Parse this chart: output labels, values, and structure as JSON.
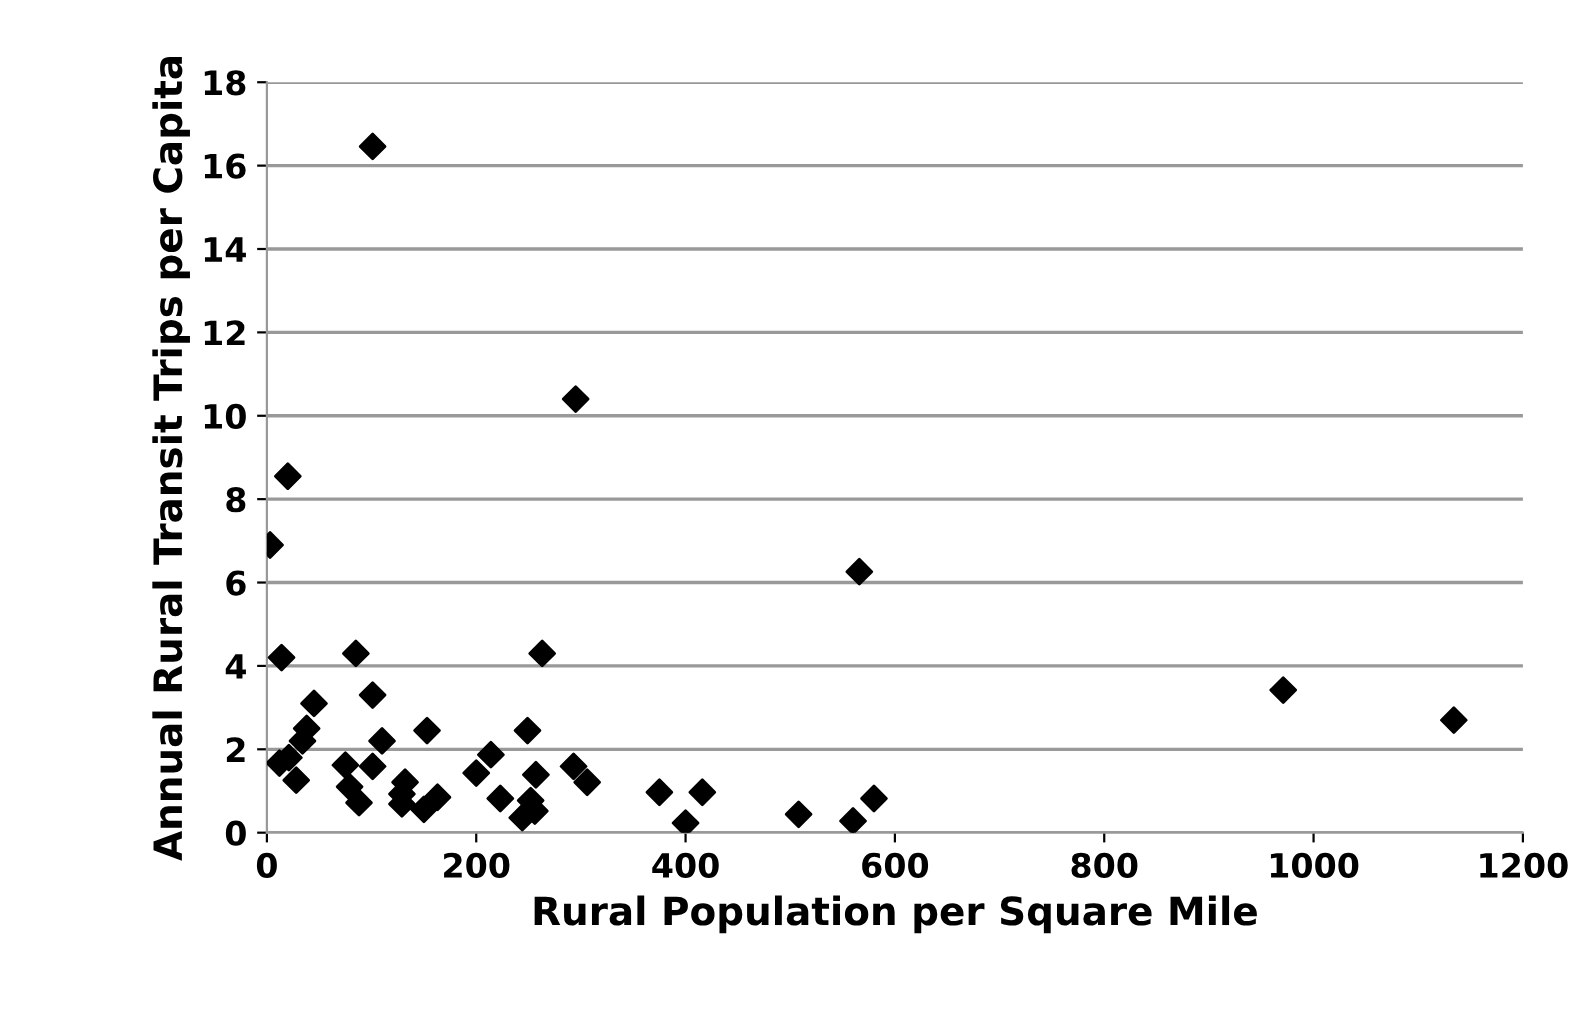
{
  "chart_data": {
    "type": "scatter",
    "xlabel": "Rural Population per Square Mile",
    "ylabel": "Annual Rural Transit Trips per Capita",
    "xlim": [
      0,
      1200
    ],
    "xticks": [
      0,
      200,
      400,
      600,
      800,
      1000,
      1200
    ],
    "ylim": [
      0,
      18
    ],
    "yticks": [
      0,
      2,
      4,
      6,
      8,
      10,
      12,
      14,
      16,
      18
    ],
    "grid": "y",
    "marker": "diamond",
    "legend": false,
    "series": [
      {
        "color": "#000000",
        "x": [
          3,
          20,
          101,
          295,
          566,
          971,
          1134,
          14,
          85,
          263,
          45,
          101,
          38,
          34,
          110,
          153,
          249,
          12,
          21,
          28,
          75,
          79,
          88,
          101,
          132,
          129,
          129,
          150,
          163,
          200,
          214,
          223,
          257,
          252,
          256,
          244,
          293,
          306,
          375,
          416,
          400,
          508,
          560,
          580
        ],
        "values": [
          6.9,
          8.55,
          16.46,
          10.4,
          6.26,
          3.42,
          2.7,
          4.2,
          4.3,
          4.3,
          3.1,
          3.3,
          2.5,
          2.2,
          2.2,
          2.45,
          2.45,
          1.67,
          1.8,
          1.26,
          1.62,
          1.1,
          0.72,
          1.59,
          1.21,
          0.93,
          0.69,
          0.56,
          0.85,
          1.43,
          1.87,
          0.82,
          1.39,
          0.77,
          0.52,
          0.36,
          1.59,
          1.21,
          0.97,
          0.97,
          0.23,
          0.44,
          0.28,
          0.82
        ]
      }
    ]
  }
}
